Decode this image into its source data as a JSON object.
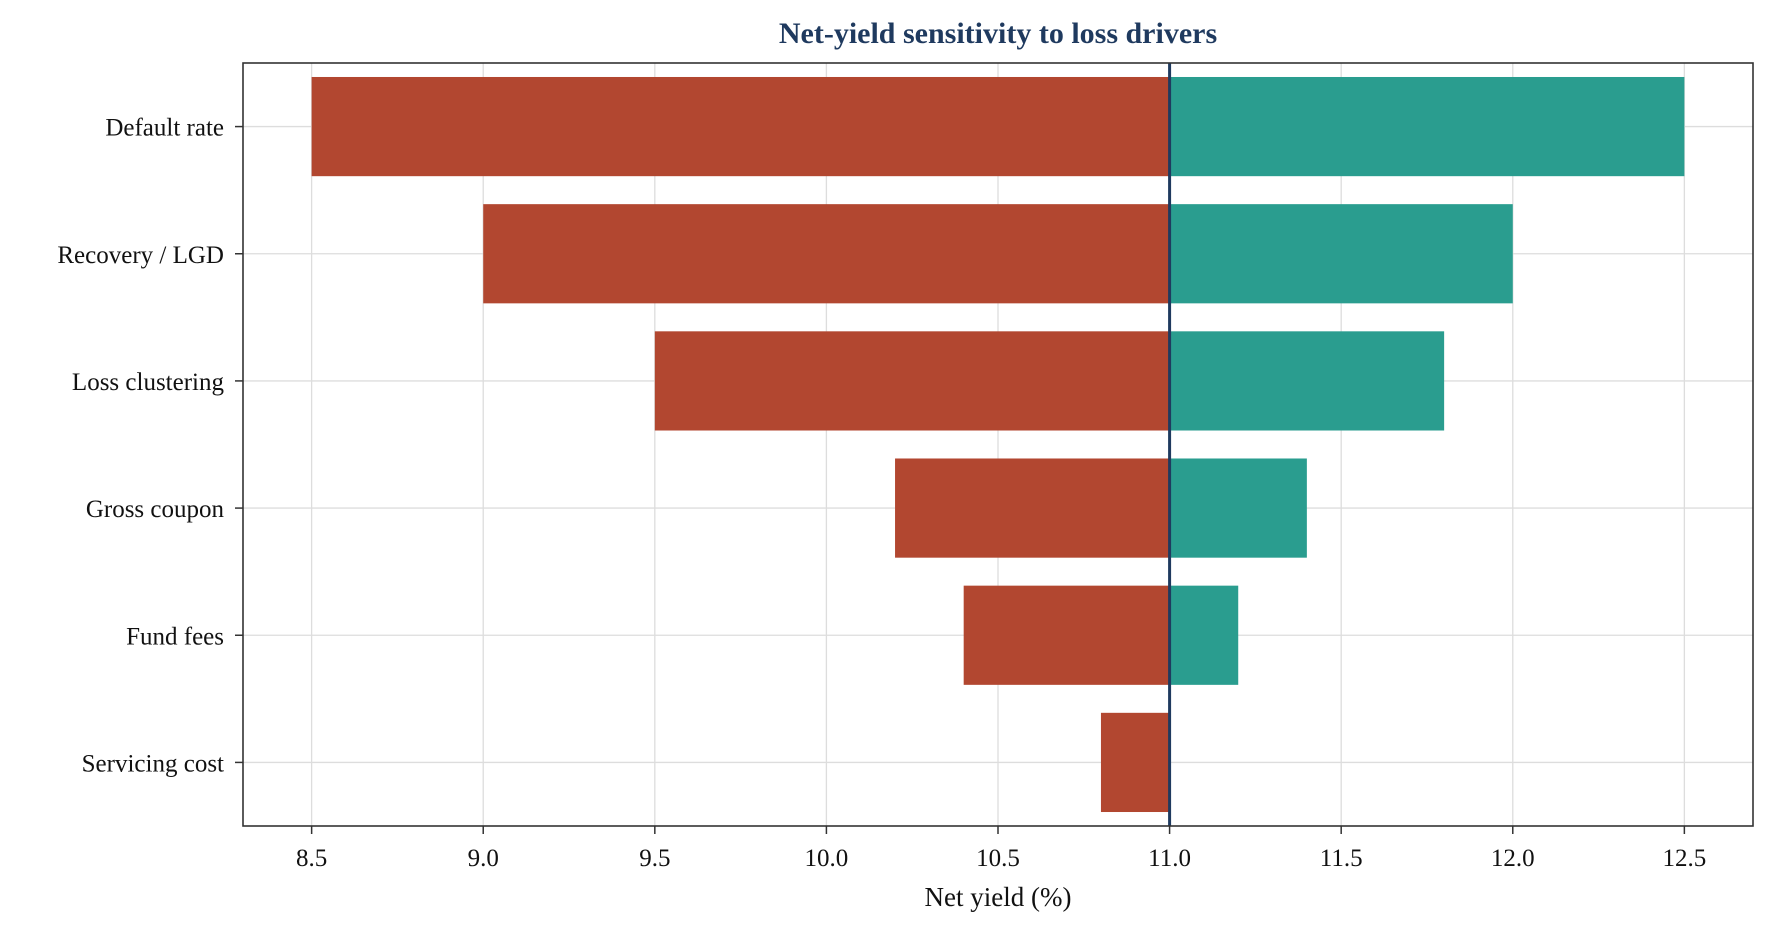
{
  "chart_data": {
    "type": "bar",
    "orientation": "horizontal",
    "subtype": "tornado",
    "title": "Net-yield sensitivity to loss drivers",
    "xlabel": "Net yield (%)",
    "ylabel": "",
    "xlim": [
      8.3,
      12.7
    ],
    "xticks": [
      "8.5",
      "9.0",
      "9.5",
      "10.0",
      "10.5",
      "11.0",
      "11.5",
      "12.0",
      "12.5"
    ],
    "baseline": 11.0,
    "grid": true,
    "categories": [
      "Default rate",
      "Recovery / LGD",
      "Loss clustering",
      "Gross coupon",
      "Fund fees",
      "Servicing cost"
    ],
    "low_values": [
      8.5,
      9.0,
      9.5,
      10.2,
      10.4,
      10.8
    ],
    "high_values": [
      12.5,
      12.0,
      11.8,
      11.4,
      11.2,
      11.0
    ],
    "colors": {
      "low": "#b24730",
      "high": "#2a9d8f",
      "baseline": "#1f3a5f",
      "title": "#1f3a5f",
      "grid": "#dddddd",
      "frame": "#333333"
    }
  }
}
